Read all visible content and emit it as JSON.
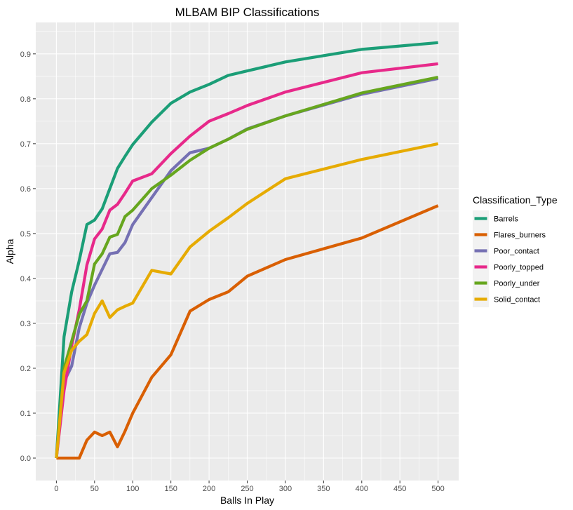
{
  "chart_data": {
    "type": "line",
    "title": "MLBAM BIP Classifications",
    "xlabel": "Balls In Play",
    "ylabel": "Alpha",
    "xlim": [
      -27,
      527
    ],
    "ylim": [
      -0.05,
      0.97
    ],
    "xticks": [
      0,
      25,
      50,
      75,
      100,
      125,
      150,
      175,
      200,
      225,
      250,
      275,
      300,
      325,
      350,
      375,
      400,
      425,
      450,
      475,
      500
    ],
    "xtick_labels": [
      "0",
      "50",
      "100",
      "150",
      "200",
      "250",
      "300",
      "350",
      "400",
      "450",
      "500"
    ],
    "yticks": [
      0.0,
      0.05,
      0.1,
      0.15,
      0.2,
      0.25,
      0.3,
      0.35,
      0.4,
      0.45,
      0.5,
      0.55,
      0.6,
      0.65,
      0.7,
      0.75,
      0.8,
      0.85,
      0.9,
      0.95
    ],
    "ytick_labels": [
      "0.0",
      "0.1",
      "0.2",
      "0.3",
      "0.4",
      "0.5",
      "0.6",
      "0.7",
      "0.8",
      "0.9"
    ],
    "grid": true,
    "legend": {
      "title": "Classification_Type",
      "position": "right"
    },
    "series": [
      {
        "name": "Barrels",
        "color": "#1b9e77",
        "x": [
          0,
          10,
          20,
          30,
          40,
          50,
          60,
          70,
          80,
          90,
          100,
          125,
          150,
          175,
          200,
          225,
          250,
          300,
          400,
          500
        ],
        "y": [
          0.0,
          0.27,
          0.37,
          0.44,
          0.52,
          0.53,
          0.555,
          0.6,
          0.645,
          0.672,
          0.698,
          0.748,
          0.79,
          0.815,
          0.832,
          0.852,
          0.862,
          0.882,
          0.91,
          0.925
        ]
      },
      {
        "name": "Flares_burners",
        "color": "#d95f02",
        "x": [
          0,
          10,
          20,
          30,
          40,
          50,
          60,
          70,
          80,
          90,
          100,
          125,
          150,
          175,
          200,
          225,
          250,
          300,
          400,
          500
        ],
        "y": [
          0.0,
          0.0,
          0.0,
          0.0,
          0.04,
          0.058,
          0.05,
          0.058,
          0.025,
          0.06,
          0.1,
          0.18,
          0.23,
          0.327,
          0.353,
          0.37,
          0.405,
          0.442,
          0.49,
          0.562
        ]
      },
      {
        "name": "Poor_contact",
        "color": "#7570b3",
        "x": [
          0,
          10,
          20,
          30,
          40,
          50,
          60,
          70,
          80,
          90,
          100,
          125,
          150,
          175,
          200,
          225,
          250,
          300,
          400,
          500
        ],
        "y": [
          0.0,
          0.17,
          0.205,
          0.29,
          0.345,
          0.385,
          0.42,
          0.455,
          0.458,
          0.48,
          0.52,
          0.58,
          0.64,
          0.68,
          0.69,
          0.71,
          0.733,
          0.762,
          0.81,
          0.845
        ]
      },
      {
        "name": "Poorly_topped",
        "color": "#e7298a",
        "x": [
          0,
          10,
          20,
          30,
          40,
          50,
          60,
          70,
          80,
          90,
          100,
          125,
          150,
          175,
          200,
          225,
          250,
          300,
          400,
          500
        ],
        "y": [
          0.0,
          0.15,
          0.25,
          0.33,
          0.43,
          0.488,
          0.51,
          0.552,
          0.565,
          0.59,
          0.617,
          0.633,
          0.678,
          0.717,
          0.75,
          0.767,
          0.785,
          0.815,
          0.858,
          0.878
        ]
      },
      {
        "name": "Poorly_under",
        "color": "#66a61e",
        "x": [
          0,
          10,
          20,
          30,
          40,
          50,
          60,
          70,
          80,
          90,
          100,
          125,
          150,
          175,
          200,
          225,
          250,
          300,
          400,
          500
        ],
        "y": [
          0.0,
          0.2,
          0.26,
          0.32,
          0.35,
          0.432,
          0.455,
          0.492,
          0.498,
          0.538,
          0.552,
          0.6,
          0.63,
          0.663,
          0.69,
          0.71,
          0.732,
          0.762,
          0.813,
          0.848
        ]
      },
      {
        "name": "Solid_contact",
        "color": "#e6ab02",
        "x": [
          0,
          10,
          20,
          30,
          40,
          50,
          60,
          70,
          80,
          90,
          100,
          125,
          150,
          175,
          200,
          225,
          250,
          300,
          400,
          500
        ],
        "y": [
          0.0,
          0.19,
          0.24,
          0.26,
          0.275,
          0.322,
          0.35,
          0.313,
          0.33,
          0.338,
          0.345,
          0.418,
          0.41,
          0.47,
          0.505,
          0.535,
          0.567,
          0.622,
          0.665,
          0.7
        ]
      }
    ]
  }
}
